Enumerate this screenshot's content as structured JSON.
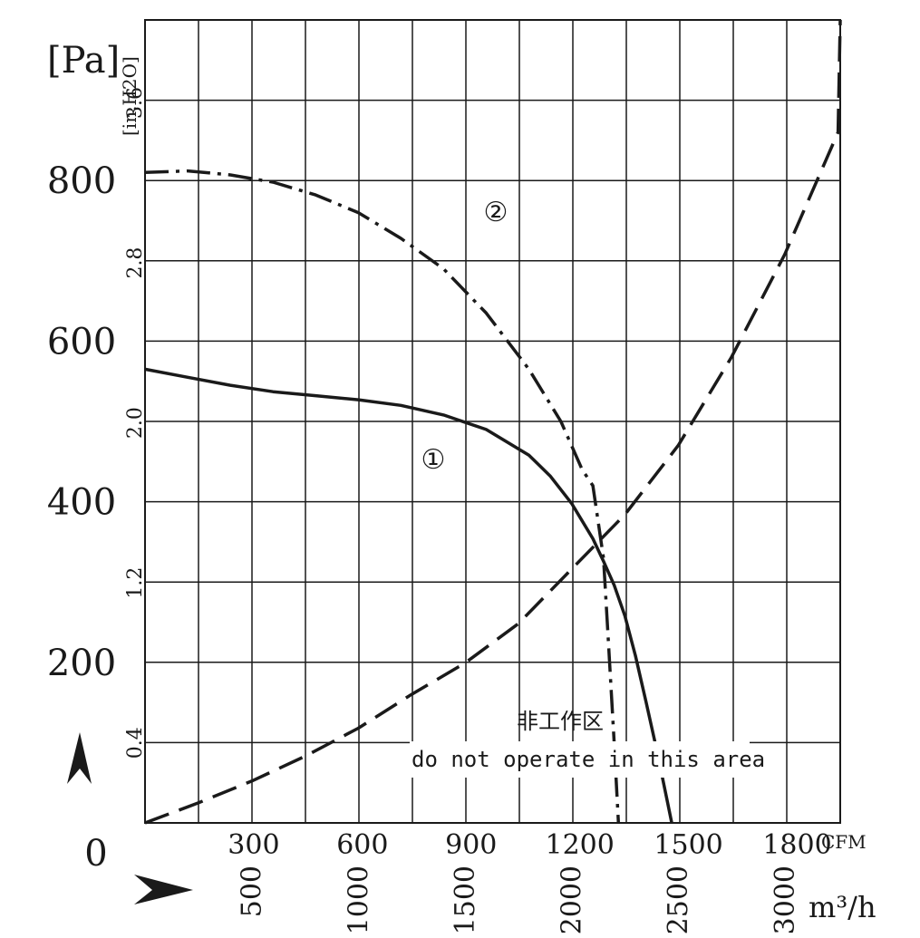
{
  "chart_data": {
    "type": "line",
    "title": "",
    "y_unit_primary": "[Pa]",
    "y_unit_secondary": "[in.H2O]",
    "x_unit_primary": "CFM",
    "x_unit_secondary": "m³/h",
    "pa_ticks": [
      "0",
      "200",
      "400",
      "600",
      "800"
    ],
    "inh2o_ticks": [
      "0.4",
      "1.2",
      "2.0",
      "2.8",
      "3.6"
    ],
    "cfm_ticks": [
      "300",
      "600",
      "900",
      "1200",
      "1500",
      "1800"
    ],
    "m3h_ticks": [
      "500",
      "1000",
      "1500",
      "2000",
      "2500",
      "3000"
    ],
    "xlim_m3h": [
      0,
      3260
    ],
    "ylim_pa": [
      0,
      1000
    ],
    "grid": true,
    "annotation_cn": "非工作区",
    "annotation_en": "do not operate in this area",
    "series": [
      {
        "label": "①",
        "style": "solid",
        "points": [
          [
            0,
            565
          ],
          [
            200,
            555
          ],
          [
            400,
            545
          ],
          [
            600,
            537
          ],
          [
            800,
            532
          ],
          [
            1000,
            527
          ],
          [
            1200,
            520
          ],
          [
            1400,
            508
          ],
          [
            1600,
            490
          ],
          [
            1800,
            458
          ],
          [
            1900,
            432
          ],
          [
            2000,
            398
          ],
          [
            2100,
            354
          ],
          [
            2150,
            326
          ],
          [
            2200,
            296
          ],
          [
            2250,
            258
          ],
          [
            2300,
            208
          ],
          [
            2350,
            150
          ],
          [
            2400,
            90
          ],
          [
            2450,
            26
          ],
          [
            2470,
            0
          ]
        ]
      },
      {
        "label": "②",
        "style": "dashdot",
        "points": [
          [
            0,
            810
          ],
          [
            200,
            812
          ],
          [
            400,
            807
          ],
          [
            600,
            798
          ],
          [
            800,
            782
          ],
          [
            1000,
            760
          ],
          [
            1200,
            728
          ],
          [
            1400,
            690
          ],
          [
            1600,
            635
          ],
          [
            1800,
            565
          ],
          [
            1950,
            500
          ],
          [
            2050,
            440
          ],
          [
            2100,
            420
          ],
          [
            2150,
            330
          ],
          [
            2170,
            240
          ],
          [
            2200,
            100
          ],
          [
            2220,
            0
          ]
        ]
      },
      {
        "label": "",
        "style": "dashed",
        "points": [
          [
            0,
            0
          ],
          [
            250,
            25
          ],
          [
            500,
            52
          ],
          [
            750,
            83
          ],
          [
            1000,
            118
          ],
          [
            1250,
            160
          ],
          [
            1500,
            199
          ],
          [
            1750,
            248
          ],
          [
            2000,
            316
          ],
          [
            2250,
            384
          ],
          [
            2500,
            470
          ],
          [
            2750,
            580
          ],
          [
            3000,
            708
          ],
          [
            3250,
            860
          ],
          [
            3260,
            1000
          ]
        ]
      }
    ]
  }
}
